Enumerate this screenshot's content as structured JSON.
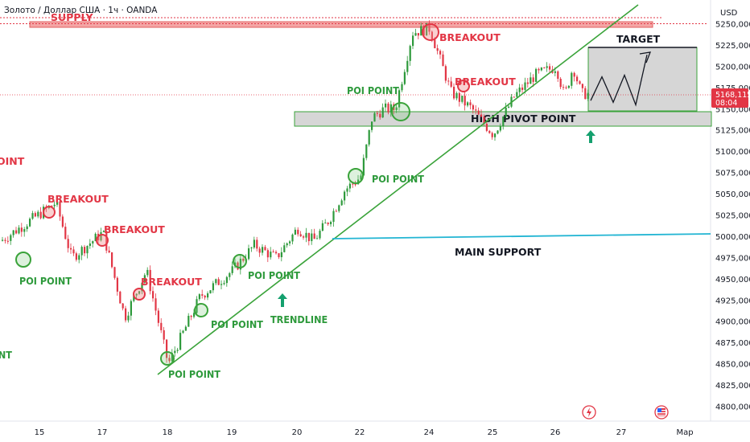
{
  "header": {
    "symbol_title": "Золото / Доллар США · 1ч · OANDA",
    "currency": "USD"
  },
  "price_tag": {
    "price": "5168,115",
    "countdown": "08:04"
  },
  "colors": {
    "up": "#2e9a3c",
    "down": "#e23645",
    "trendline": "#3aa33a",
    "support": "#22b5d3",
    "supply_fill": "#f4a5a5",
    "pivot_fill": "#d6d6d6",
    "target_fill": "#d6d6d6"
  },
  "chart_data": {
    "type": "candlestick",
    "y_axis": {
      "ticks": [
        "5250,000",
        "5225,000",
        "5200,000",
        "5175,000",
        "5150,000",
        "5125,000",
        "5100,000",
        "5075,000",
        "5050,000",
        "5025,000",
        "5000,000",
        "4975,000",
        "4950,000",
        "4925,000",
        "4900,000",
        "4875,000",
        "4850,000",
        "4825,000",
        "4800,000"
      ],
      "range": [
        4790,
        5262
      ]
    },
    "x_axis": {
      "labels": [
        "15",
        "17",
        "18",
        "19",
        "20",
        "22",
        "24",
        "25",
        "26",
        "27",
        "Мар"
      ]
    },
    "path_points": [
      [
        "15",
        4995
      ],
      [
        "15",
        5040
      ],
      [
        "16",
        4975
      ],
      [
        "17",
        5005
      ],
      [
        "17",
        4905
      ],
      [
        "17",
        4960
      ],
      [
        "18",
        4850
      ],
      [
        "18",
        4930
      ],
      [
        "19",
        4960
      ],
      [
        "19",
        4990
      ],
      [
        "19",
        4975
      ],
      [
        "20",
        5010
      ],
      [
        "20",
        4995
      ],
      [
        "21",
        5020
      ],
      [
        "21",
        5055
      ],
      [
        "22",
        5070
      ],
      [
        "22",
        5140
      ],
      [
        "22",
        5150
      ],
      [
        "23",
        5150
      ],
      [
        "23",
        5240
      ],
      [
        "24",
        5245
      ],
      [
        "24",
        5170
      ],
      [
        "24",
        5150
      ],
      [
        "25",
        5120
      ],
      [
        "25",
        5165
      ],
      [
        "25",
        5190
      ],
      [
        "26",
        5200
      ],
      [
        "26",
        5165
      ],
      [
        "26",
        5200
      ],
      [
        "26",
        5168
      ]
    ],
    "current_price": 5168.115,
    "zones": [
      {
        "label": "SUPPLY",
        "from": 5247,
        "to": 5253
      },
      {
        "label": "HIGH PIVOT POINT",
        "from": 5133,
        "to": 5149
      },
      {
        "label": "TARGET",
        "from": 5150,
        "to": 5222
      }
    ],
    "lines": [
      {
        "label": "TRENDLINE"
      },
      {
        "label": "MAIN SUPPORT"
      }
    ],
    "projected_path": [
      5160,
      5188,
      5158,
      5190,
      5155,
      5214
    ],
    "annotations": [
      {
        "label": "POI POINT",
        "color": "green"
      },
      {
        "label": "POI POINT",
        "color": "green"
      },
      {
        "label": "POI POINT",
        "color": "green"
      },
      {
        "label": "POI POINT",
        "color": "green"
      },
      {
        "label": "POI POINT",
        "color": "green"
      },
      {
        "label": "POI POINT",
        "color": "green"
      },
      {
        "label": "POI POINT",
        "color": "green"
      },
      {
        "label": "POI POINT",
        "color": "green"
      },
      {
        "label": "BREAKOUT",
        "color": "red"
      },
      {
        "label": "BREAKOUT",
        "color": "red"
      },
      {
        "label": "BREAKOUT",
        "color": "red"
      },
      {
        "label": "BREAKOUT",
        "color": "red"
      },
      {
        "label": "BREAKOUT",
        "color": "red"
      },
      {
        "label": "TRENDLINE",
        "color": "green"
      },
      {
        "label": "MAIN SUPPORT",
        "color": "black"
      },
      {
        "label": "HIGH PIVOT POINT",
        "color": "black"
      },
      {
        "label": "TARGET",
        "color": "black"
      },
      {
        "label": "SUPPLY",
        "color": "red"
      }
    ]
  }
}
